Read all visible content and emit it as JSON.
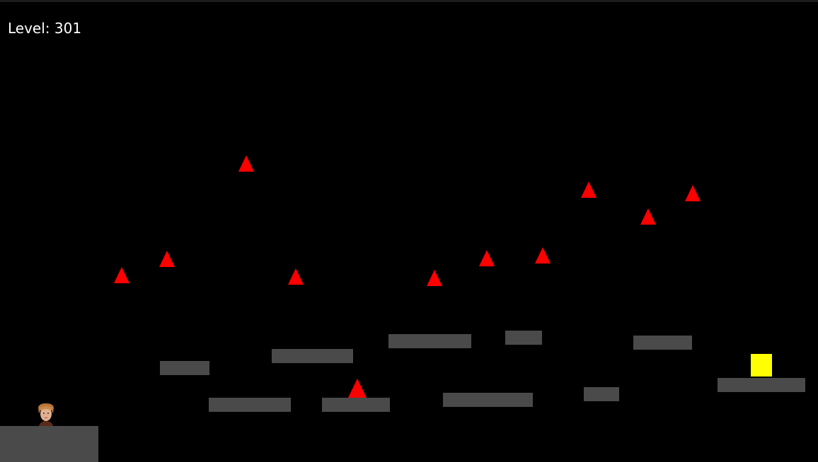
{
  "hud": {
    "level_label": "Level: 301"
  },
  "colors": {
    "background": "#000000",
    "platform": "#4a4a4a",
    "spike": "#ff0000",
    "goal": "#ffff00",
    "text": "#ffffff"
  },
  "entities": {
    "player": "character-portrait",
    "goal": "yellow-square",
    "platform_count": 11,
    "spike_count": 11
  }
}
